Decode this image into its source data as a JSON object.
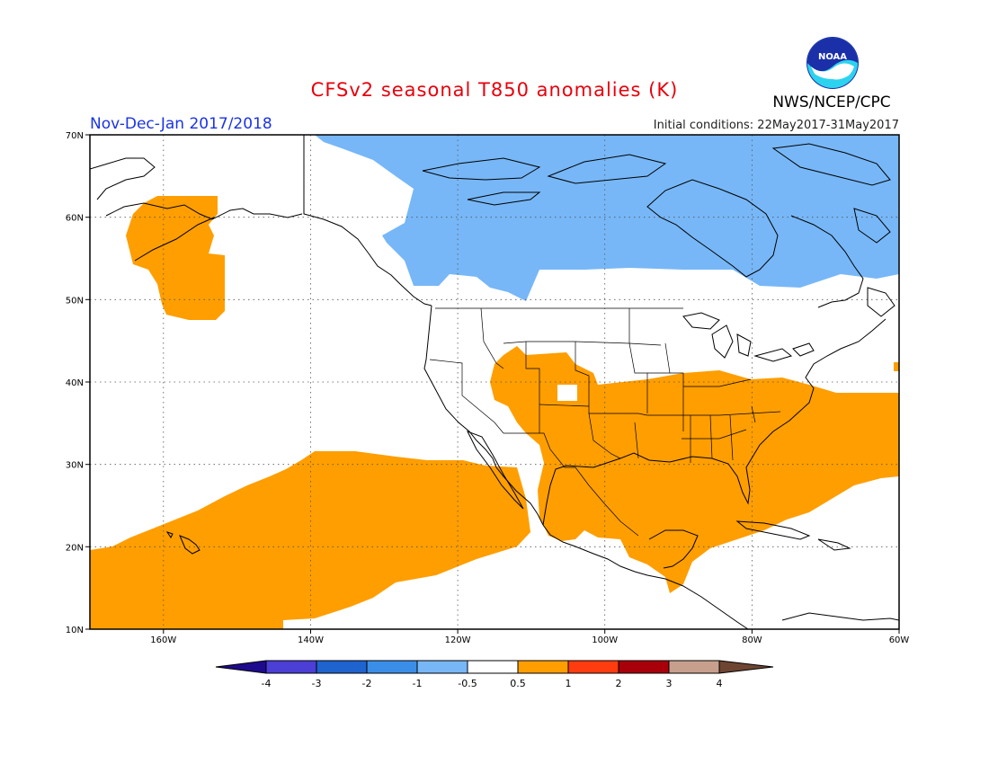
{
  "title": "CFSv2 seasonal T850 anomalies (K)",
  "period": "Nov-Dec-Jan 2017/2018",
  "initial_conditions": "Initial conditions: 22May2017-31May2017",
  "agency": "NWS/NCEP/CPC",
  "logo_text": "NOAA",
  "lat_labels": [
    "70N",
    "60N",
    "50N",
    "40N",
    "30N",
    "20N",
    "10N"
  ],
  "lon_labels": [
    "160W",
    "140W",
    "120W",
    "100W",
    "80W",
    "60W"
  ],
  "colorbar": {
    "labels": [
      "-4",
      "-3",
      "-2",
      "-1",
      "-0.5",
      "0.5",
      "1",
      "2",
      "3",
      "4"
    ],
    "colors": [
      "#1e0a8c",
      "#4b3fd6",
      "#1f63cf",
      "#3b8ee8",
      "#77b7f7",
      "#ffffff",
      "#ff9e00",
      "#ff3c0f",
      "#a8000a",
      "#c7a08d",
      "#6e4533"
    ]
  },
  "colors": {
    "warm": "#ff9e00",
    "cool": "#77b7f7",
    "coast": "#000000"
  }
}
